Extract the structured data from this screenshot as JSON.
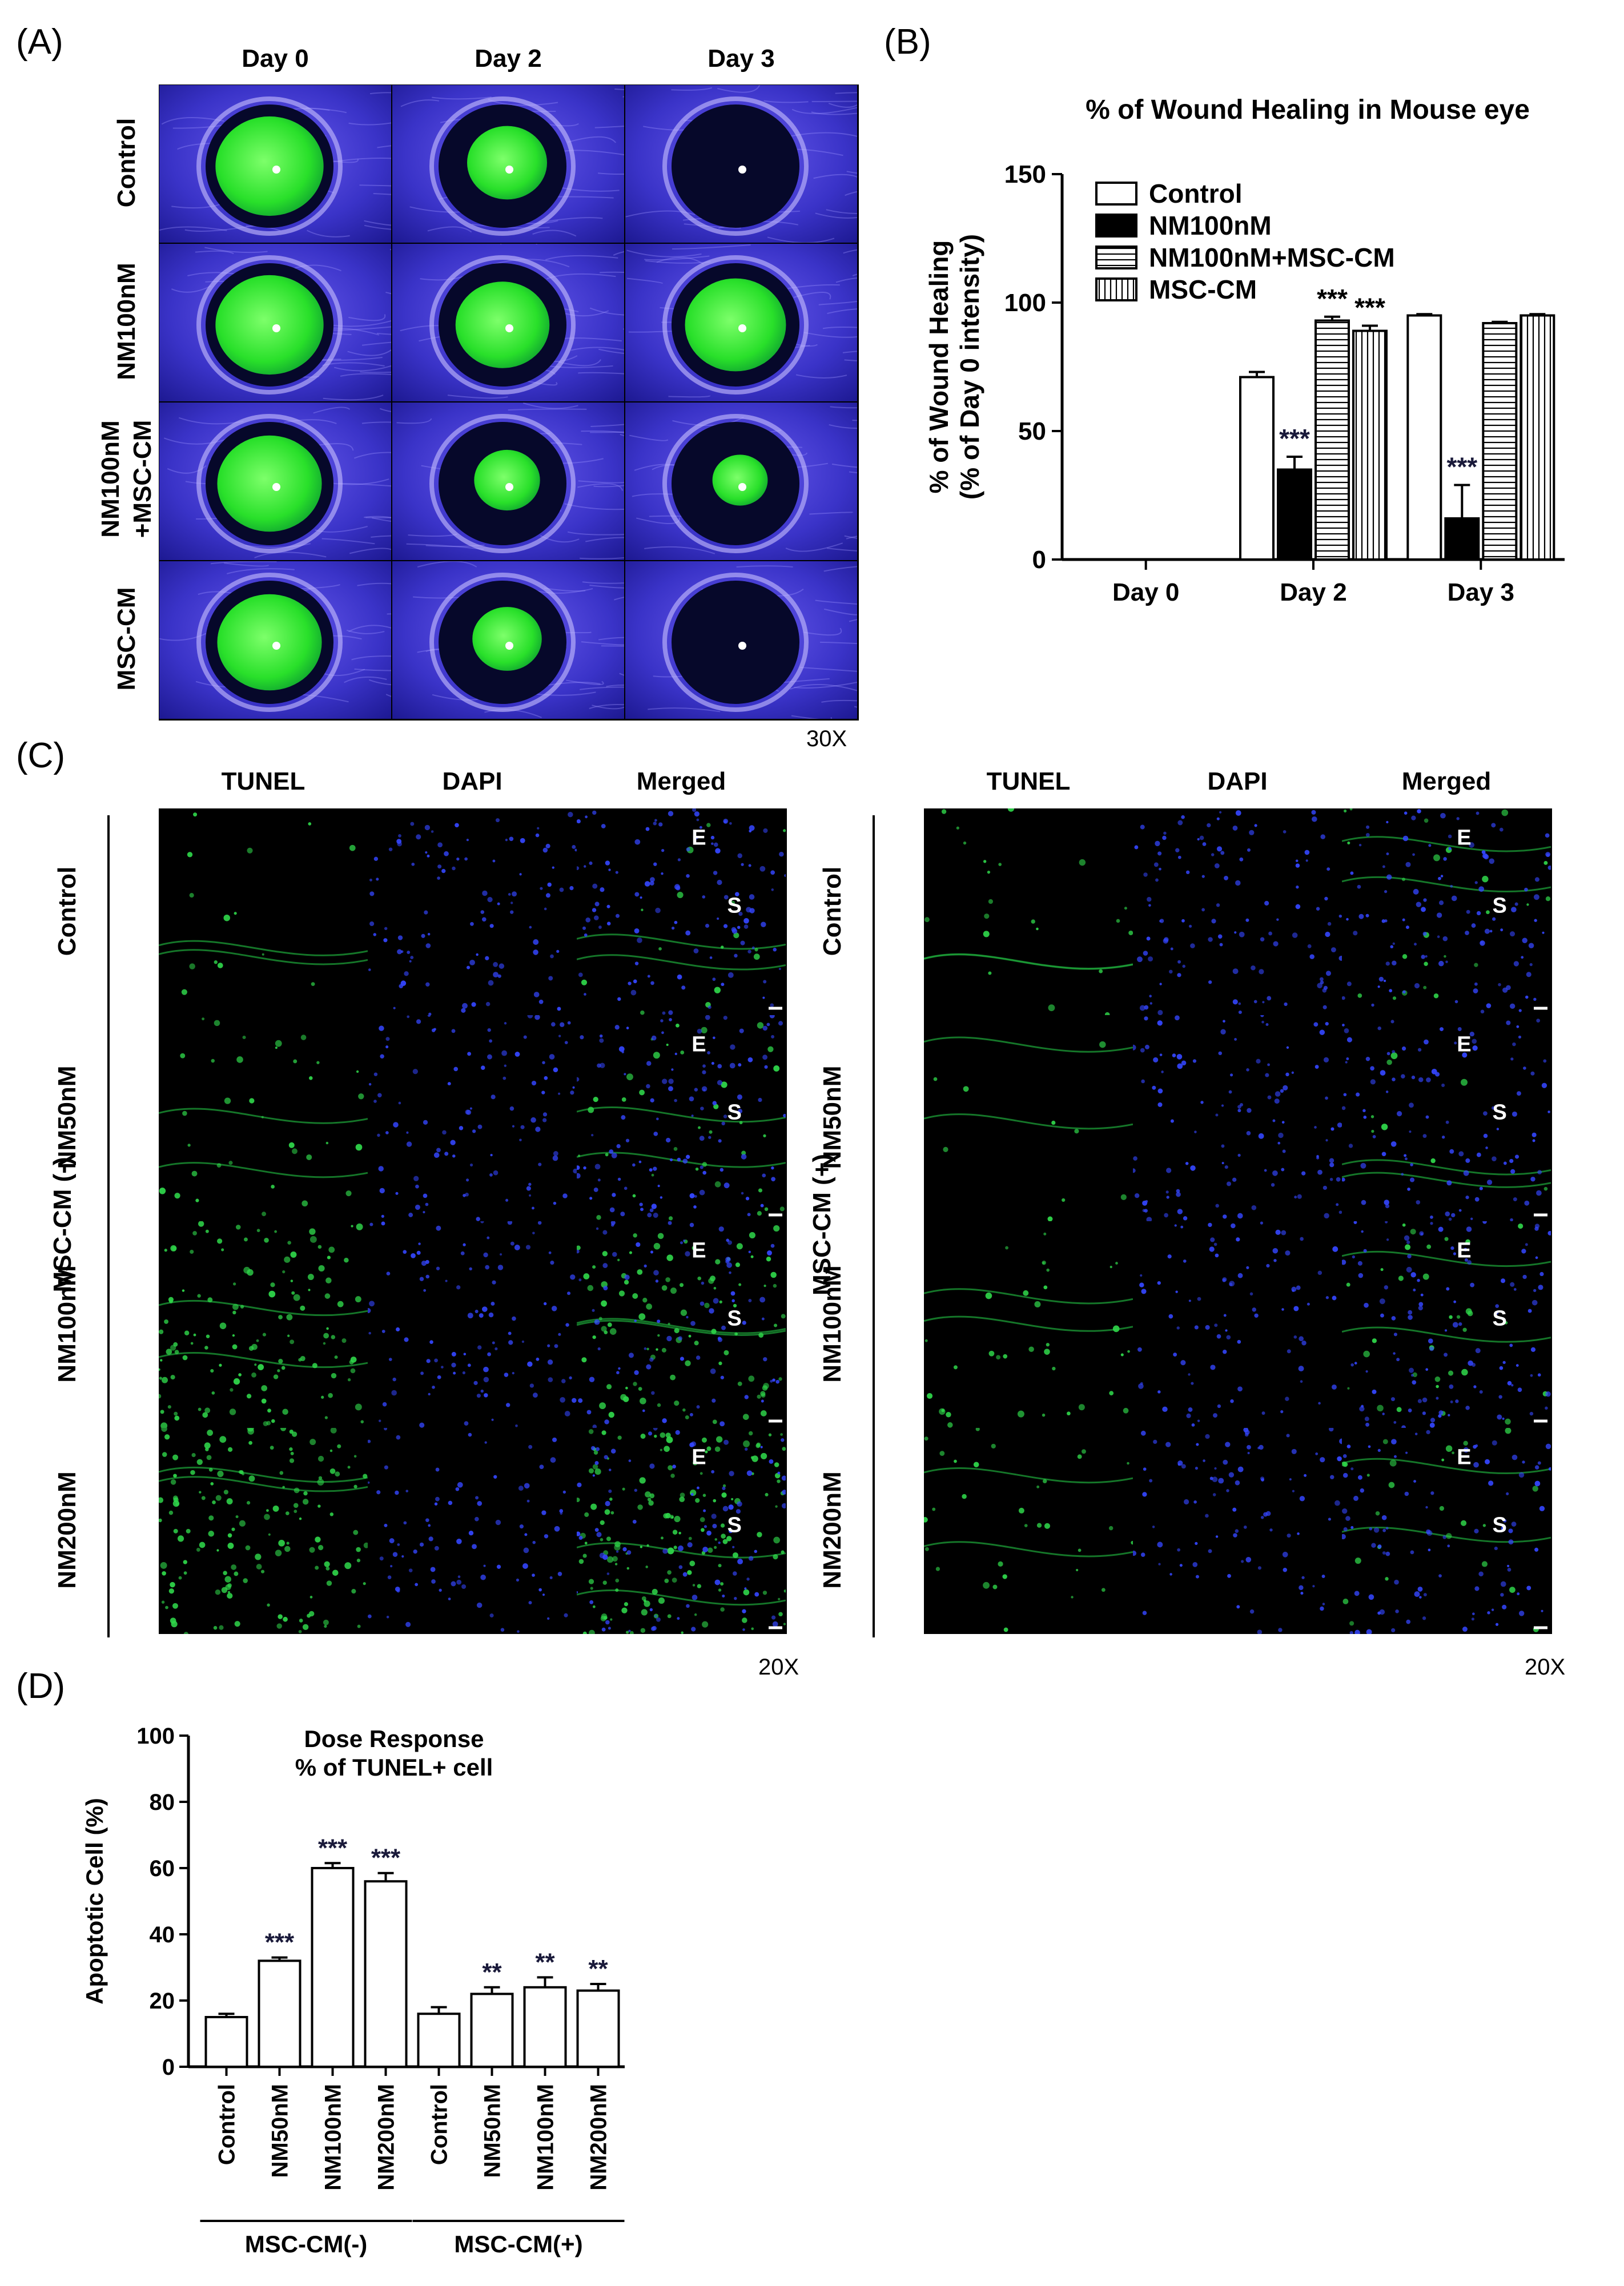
{
  "panelA": {
    "letter": "(A)",
    "columns": [
      "Day 0",
      "Day 2",
      "Day 3"
    ],
    "rows": [
      "Control",
      "NM100nM",
      "NM100nM\n+MSC-CM",
      "MSC-CM"
    ],
    "row_label_lines": [
      [
        "Control"
      ],
      [
        "NM100nM"
      ],
      [
        "NM100nM",
        "+MSC-CM"
      ],
      [
        "MSC-CM"
      ]
    ],
    "magnification": "30X",
    "green_fraction": [
      [
        0.9,
        0.5,
        0.0
      ],
      [
        0.9,
        0.7,
        0.8
      ],
      [
        0.85,
        0.3,
        0.15
      ],
      [
        0.85,
        0.35,
        0.0
      ]
    ]
  },
  "panelB": {
    "letter": "(B)",
    "chart_data": {
      "type": "bar",
      "title": "% of Wound Healing in Mouse eye",
      "ylabel_lines": [
        "% of Wound Healing",
        "(% of Day 0 intensity)"
      ],
      "categories": [
        "Day 0",
        "Day 2",
        "Day 3"
      ],
      "ylim": [
        0,
        150
      ],
      "yticks": [
        "0",
        "50",
        "100",
        "150"
      ],
      "legend_position": "top-left",
      "series": [
        {
          "name": "Control",
          "pattern": "white",
          "values": [
            null,
            71,
            95
          ],
          "errors": [
            null,
            2,
            0.5
          ],
          "sig": [
            null,
            "",
            ""
          ]
        },
        {
          "name": "NM100nM",
          "pattern": "black",
          "values": [
            null,
            35,
            16
          ],
          "errors": [
            null,
            5,
            13
          ],
          "sig": [
            null,
            "***",
            "***"
          ]
        },
        {
          "name": "NM100nM+MSC-CM",
          "pattern": "horizontal",
          "values": [
            null,
            93,
            92
          ],
          "errors": [
            null,
            1.5,
            0.5
          ],
          "sig": [
            null,
            "***",
            ""
          ]
        },
        {
          "name": "MSC-CM",
          "pattern": "vertical",
          "values": [
            null,
            89,
            95
          ],
          "errors": [
            null,
            2,
            0.5
          ],
          "sig": [
            null,
            "***",
            ""
          ]
        }
      ]
    }
  },
  "panelC": {
    "letter": "(C)",
    "columns": [
      "TUNEL",
      "DAPI",
      "Merged"
    ],
    "rows": [
      "Control",
      "NM50nM",
      "NM100nM",
      "NM200nM"
    ],
    "groups": [
      "MSC-CM (-)",
      "MSC-CM (+)"
    ],
    "magnification": "20X",
    "left_markers": [
      [
        {
          "t": "E"
        },
        {
          "t": "S"
        }
      ],
      [
        {
          "t": "E"
        },
        {
          "t": "S"
        }
      ],
      [
        {
          "t": "E"
        },
        {
          "t": "S"
        }
      ],
      [
        {
          "t": "E"
        },
        {
          "t": "S"
        }
      ]
    ],
    "right_markers": [
      [
        {
          "t": "E"
        },
        {
          "t": "S"
        }
      ],
      [
        {
          "t": "E"
        },
        {
          "t": "S"
        }
      ],
      [
        {
          "t": "E"
        },
        {
          "t": "S"
        }
      ],
      [
        {
          "t": "E"
        },
        {
          "t": "S"
        }
      ]
    ]
  },
  "panelD": {
    "letter": "(D)",
    "chart_data": {
      "type": "bar",
      "title_lines": [
        "Dose Response",
        "% of TUNEL+ cell"
      ],
      "ylabel": "Apoptotic Cell (%)",
      "categories": [
        "Control",
        "NM50nM",
        "NM100nM",
        "NM200nM",
        "Control",
        "NM50nM",
        "NM100nM",
        "NM200nM"
      ],
      "groups": [
        {
          "name": "MSC-CM(-)",
          "span": [
            0,
            3
          ]
        },
        {
          "name": "MSC-CM(+)",
          "span": [
            4,
            7
          ]
        }
      ],
      "values": [
        15,
        32,
        60,
        56,
        16,
        22,
        24,
        23
      ],
      "errors": [
        1,
        1,
        1.5,
        2.5,
        2,
        2,
        3,
        2
      ],
      "sig": [
        "",
        "***",
        "***",
        "***",
        "",
        "**",
        "**",
        "**"
      ],
      "ylim": [
        0,
        100
      ],
      "yticks": [
        "0",
        "20",
        "40",
        "60",
        "80",
        "100"
      ]
    }
  }
}
